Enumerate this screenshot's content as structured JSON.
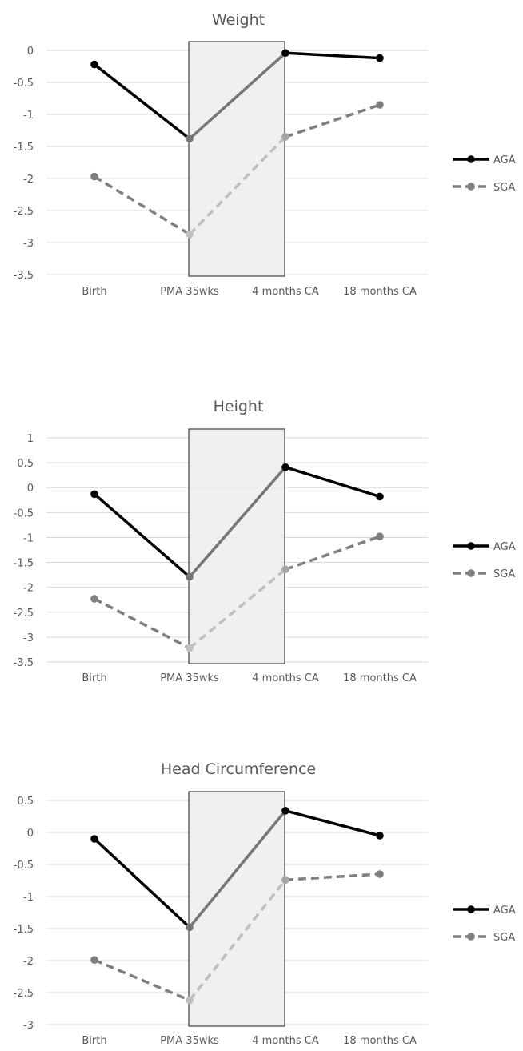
{
  "chart_data": [
    {
      "type": "line",
      "title": "Weight",
      "categories": [
        "Birth",
        "PMA 35wks",
        "4 months CA",
        "18 months CA"
      ],
      "ylim": [
        -3.5,
        0
      ],
      "yticks": [
        "0",
        "-0.5",
        "-1",
        "-1.5",
        "-2",
        "-2.5",
        "-3",
        "-3.5"
      ],
      "ytick_values": [
        0,
        -0.5,
        -1,
        -1.5,
        -2,
        -2.5,
        -3,
        -3.5
      ],
      "grid": true,
      "legend_position": "right",
      "shaded_interval": [
        "PMA 35wks",
        "4 months CA"
      ],
      "series": [
        {
          "name": "AGA",
          "values": [
            -0.22,
            -1.38,
            -0.04,
            -0.12
          ],
          "style": "solid",
          "color": "#000000"
        },
        {
          "name": "SGA",
          "values": [
            -1.97,
            -2.87,
            -1.35,
            -0.85
          ],
          "style": "dashed",
          "color": "#7f7f7f"
        }
      ]
    },
    {
      "type": "line",
      "title": "Height",
      "categories": [
        "Birth",
        "PMA 35wks",
        "4 months CA",
        "18 months CA"
      ],
      "ylim": [
        -3.5,
        1
      ],
      "yticks": [
        "1",
        "0.5",
        "0",
        "-0.5",
        "-1",
        "-1.5",
        "-2",
        "-2.5",
        "-3",
        "-3.5"
      ],
      "ytick_values": [
        1,
        0.5,
        0,
        -0.5,
        -1,
        -1.5,
        -2,
        -2.5,
        -3,
        -3.5
      ],
      "grid": true,
      "legend_position": "right",
      "shaded_interval": [
        "PMA 35wks",
        "4 months CA"
      ],
      "series": [
        {
          "name": "AGA",
          "values": [
            -0.13,
            -1.79,
            0.41,
            -0.18
          ],
          "style": "solid",
          "color": "#000000"
        },
        {
          "name": "SGA",
          "values": [
            -2.23,
            -3.22,
            -1.64,
            -0.98
          ],
          "style": "dashed",
          "color": "#7f7f7f"
        }
      ]
    },
    {
      "type": "line",
      "title": "Head Circumference",
      "categories": [
        "Birth",
        "PMA 35wks",
        "4 months CA",
        "18 months CA"
      ],
      "ylim": [
        -3,
        0.5
      ],
      "yticks": [
        "0.5",
        "0",
        "-0.5",
        "-1",
        "-1.5",
        "-2",
        "-2.5",
        "-3"
      ],
      "ytick_values": [
        0.5,
        0,
        -0.5,
        -1,
        -1.5,
        -2,
        -2.5,
        -3
      ],
      "grid": true,
      "legend_position": "right",
      "shaded_interval": [
        "PMA 35wks",
        "4 months CA"
      ],
      "series": [
        {
          "name": "AGA",
          "values": [
            -0.1,
            -1.48,
            0.34,
            -0.05
          ],
          "style": "solid",
          "color": "#000000"
        },
        {
          "name": "SGA",
          "values": [
            -1.99,
            -2.62,
            -0.74,
            -0.65
          ],
          "style": "dashed",
          "color": "#7f7f7f"
        }
      ]
    }
  ]
}
